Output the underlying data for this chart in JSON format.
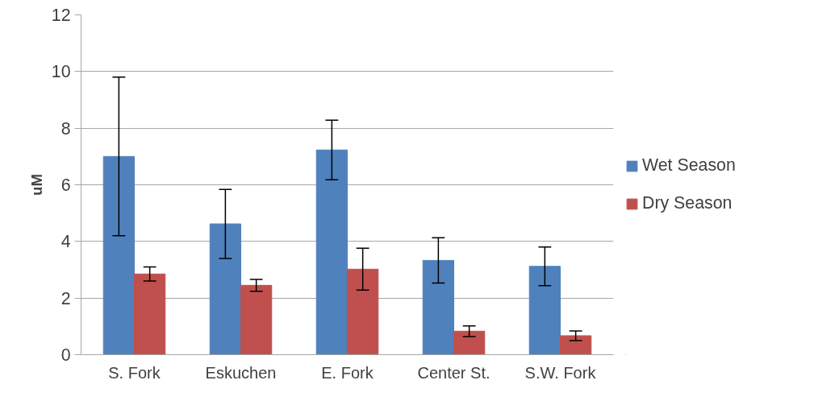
{
  "chart_data": {
    "type": "bar",
    "ylabel": "uM",
    "categories": [
      "S. Fork",
      "Eskuchen",
      "E. Fork",
      "Center St.",
      "S.W. Fork"
    ],
    "series": [
      {
        "name": "Wet Season",
        "color": "#4f81bd",
        "values": [
          7.0,
          4.62,
          7.23,
          3.33,
          3.12
        ],
        "errors": [
          2.8,
          1.22,
          1.05,
          0.8,
          0.68
        ]
      },
      {
        "name": "Dry Season",
        "color": "#c0504d",
        "values": [
          2.85,
          2.45,
          3.02,
          0.83,
          0.67
        ],
        "errors": [
          0.25,
          0.21,
          0.74,
          0.19,
          0.17
        ]
      }
    ],
    "ylim": [
      0,
      12
    ],
    "yticks": [
      0,
      2,
      4,
      6,
      8,
      10,
      12
    ],
    "grid": "y",
    "legend": "right"
  }
}
